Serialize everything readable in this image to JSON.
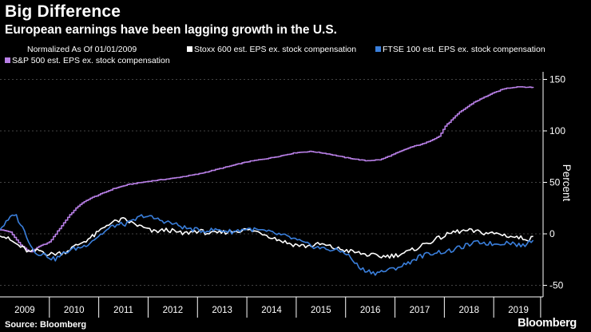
{
  "header": {
    "title": "Big Difference",
    "subtitle": "European earnings have been lagging growth in the U.S."
  },
  "legend": {
    "note": "Normalized As Of 01/01/2009"
  },
  "footer": {
    "source": "Source: Bloomberg",
    "brand": "Bloomberg"
  },
  "chart_data": {
    "type": "line",
    "title": "Big Difference",
    "subtitle": "European earnings have been lagging growth in the U.S.",
    "note": "Normalized As Of 01/01/2009",
    "ylabel": "Percent",
    "xlabel": "",
    "ylim": [
      -50,
      155
    ],
    "xlim": [
      2009.0,
      2019.9
    ],
    "y_ticks": [
      150,
      100,
      50,
      0,
      -50
    ],
    "x_ticks": [
      "2009",
      "2010",
      "2011",
      "2012",
      "2013",
      "2014",
      "2015",
      "2016",
      "2017",
      "2018",
      "2019"
    ],
    "grid": "horizontal dashed",
    "legend_position": "top",
    "series": [
      {
        "name": "S&P 500 est. EPS ex. stock compensation",
        "color": "#b87fe6",
        "x": [
          2009.0,
          2009.2,
          2009.4,
          2009.6,
          2009.8,
          2010.0,
          2010.2,
          2010.4,
          2010.6,
          2010.8,
          2011.0,
          2011.3,
          2011.6,
          2012.0,
          2012.5,
          2013.0,
          2013.5,
          2014.0,
          2014.5,
          2014.8,
          2015.0,
          2015.3,
          2015.6,
          2016.0,
          2016.4,
          2016.7,
          2017.0,
          2017.3,
          2017.6,
          2017.9,
          2018.0,
          2018.3,
          2018.6,
          2018.9,
          2019.2,
          2019.5,
          2019.8
        ],
        "values": [
          4,
          2,
          -10,
          -18,
          -12,
          -8,
          5,
          18,
          28,
          34,
          38,
          44,
          48,
          51,
          54,
          58,
          64,
          70,
          74,
          77,
          79,
          80,
          78,
          74,
          71,
          72,
          78,
          84,
          88,
          95,
          104,
          118,
          128,
          135,
          141,
          143,
          142
        ]
      },
      {
        "name": "Stoxx 600 est. EPS ex. stock compensation",
        "color": "#ffffff",
        "x": [
          2009.0,
          2009.2,
          2009.4,
          2009.6,
          2009.8,
          2010.0,
          2010.3,
          2010.6,
          2010.9,
          2011.2,
          2011.5,
          2011.8,
          2012.1,
          2012.4,
          2012.7,
          2013.0,
          2013.3,
          2013.6,
          2014.0,
          2014.3,
          2014.6,
          2014.9,
          2015.2,
          2015.5,
          2015.8,
          2016.1,
          2016.4,
          2016.7,
          2017.0,
          2017.3,
          2017.6,
          2017.9,
          2018.2,
          2018.5,
          2018.8,
          2019.1,
          2019.4,
          2019.7,
          2019.8
        ],
        "values": [
          0,
          -6,
          -12,
          -18,
          -16,
          -20,
          -18,
          -10,
          -2,
          10,
          14,
          8,
          2,
          4,
          0,
          3,
          0,
          2,
          4,
          1,
          -5,
          -10,
          -12,
          -10,
          -14,
          -17,
          -20,
          -22,
          -21,
          -17,
          -10,
          -4,
          2,
          3,
          1,
          0,
          -3,
          -5,
          -4
        ]
      },
      {
        "name": "FTSE 100 est. EPS ex. stock compensation",
        "color": "#3a7fdc",
        "x": [
          2009.0,
          2009.15,
          2009.3,
          2009.5,
          2009.7,
          2009.9,
          2010.1,
          2010.4,
          2010.7,
          2011.0,
          2011.3,
          2011.6,
          2011.9,
          2012.2,
          2012.5,
          2012.8,
          2013.1,
          2013.4,
          2013.7,
          2014.0,
          2014.3,
          2014.6,
          2014.9,
          2015.2,
          2015.5,
          2015.8,
          2016.0,
          2016.3,
          2016.6,
          2016.9,
          2017.2,
          2017.5,
          2017.8,
          2018.1,
          2018.4,
          2018.7,
          2019.0,
          2019.3,
          2019.6,
          2019.8
        ],
        "values": [
          5,
          12,
          20,
          2,
          -18,
          -20,
          -25,
          -16,
          -12,
          -2,
          8,
          10,
          18,
          14,
          10,
          5,
          3,
          4,
          2,
          5,
          3,
          0,
          -4,
          -10,
          -14,
          -16,
          -18,
          -34,
          -38,
          -35,
          -30,
          -22,
          -18,
          -17,
          -12,
          -8,
          -10,
          -8,
          -12,
          -5
        ]
      }
    ]
  }
}
